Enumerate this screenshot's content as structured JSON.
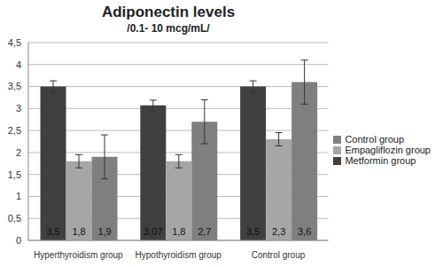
{
  "chart_data": {
    "type": "bar",
    "title": "Adiponectin levels",
    "subtitle": "/0.1- 10 mcg/mL/",
    "categories": [
      "Hyperthyroidism group",
      "Hypothyroidism group",
      "Control group"
    ],
    "series": [
      {
        "name": "Metformin group",
        "color": "#404040",
        "values": [
          3.5,
          3.07,
          3.5
        ],
        "value_labels": [
          "3,5",
          "3,07",
          "3,5"
        ],
        "errors": [
          0.13,
          0.12,
          0.13
        ]
      },
      {
        "name": "Empagliflozin group",
        "color": "#a6a6a6",
        "values": [
          1.8,
          1.8,
          2.3
        ],
        "value_labels": [
          "1,8",
          "1,8",
          "2,3"
        ],
        "errors": [
          0.15,
          0.15,
          0.15
        ]
      },
      {
        "name": "Control group",
        "color": "#7f7f7f",
        "values": [
          1.9,
          2.7,
          3.6
        ],
        "value_labels": [
          "1,9",
          "2,7",
          "3,6"
        ],
        "errors": [
          0.5,
          0.5,
          0.5
        ]
      }
    ],
    "ylim": [
      0,
      4.5
    ],
    "yticks": [
      0,
      {
        "value": 0.5,
        "label": "0,5"
      },
      1,
      {
        "value": 1.5,
        "label": "1,5"
      },
      2,
      {
        "value": 2.5,
        "label": "2,5"
      },
      3,
      {
        "value": 3.5,
        "label": "3,5"
      },
      4,
      {
        "value": 4.5,
        "label": "4,5"
      }
    ],
    "grid": true,
    "legend": "right",
    "data_labels": true
  }
}
